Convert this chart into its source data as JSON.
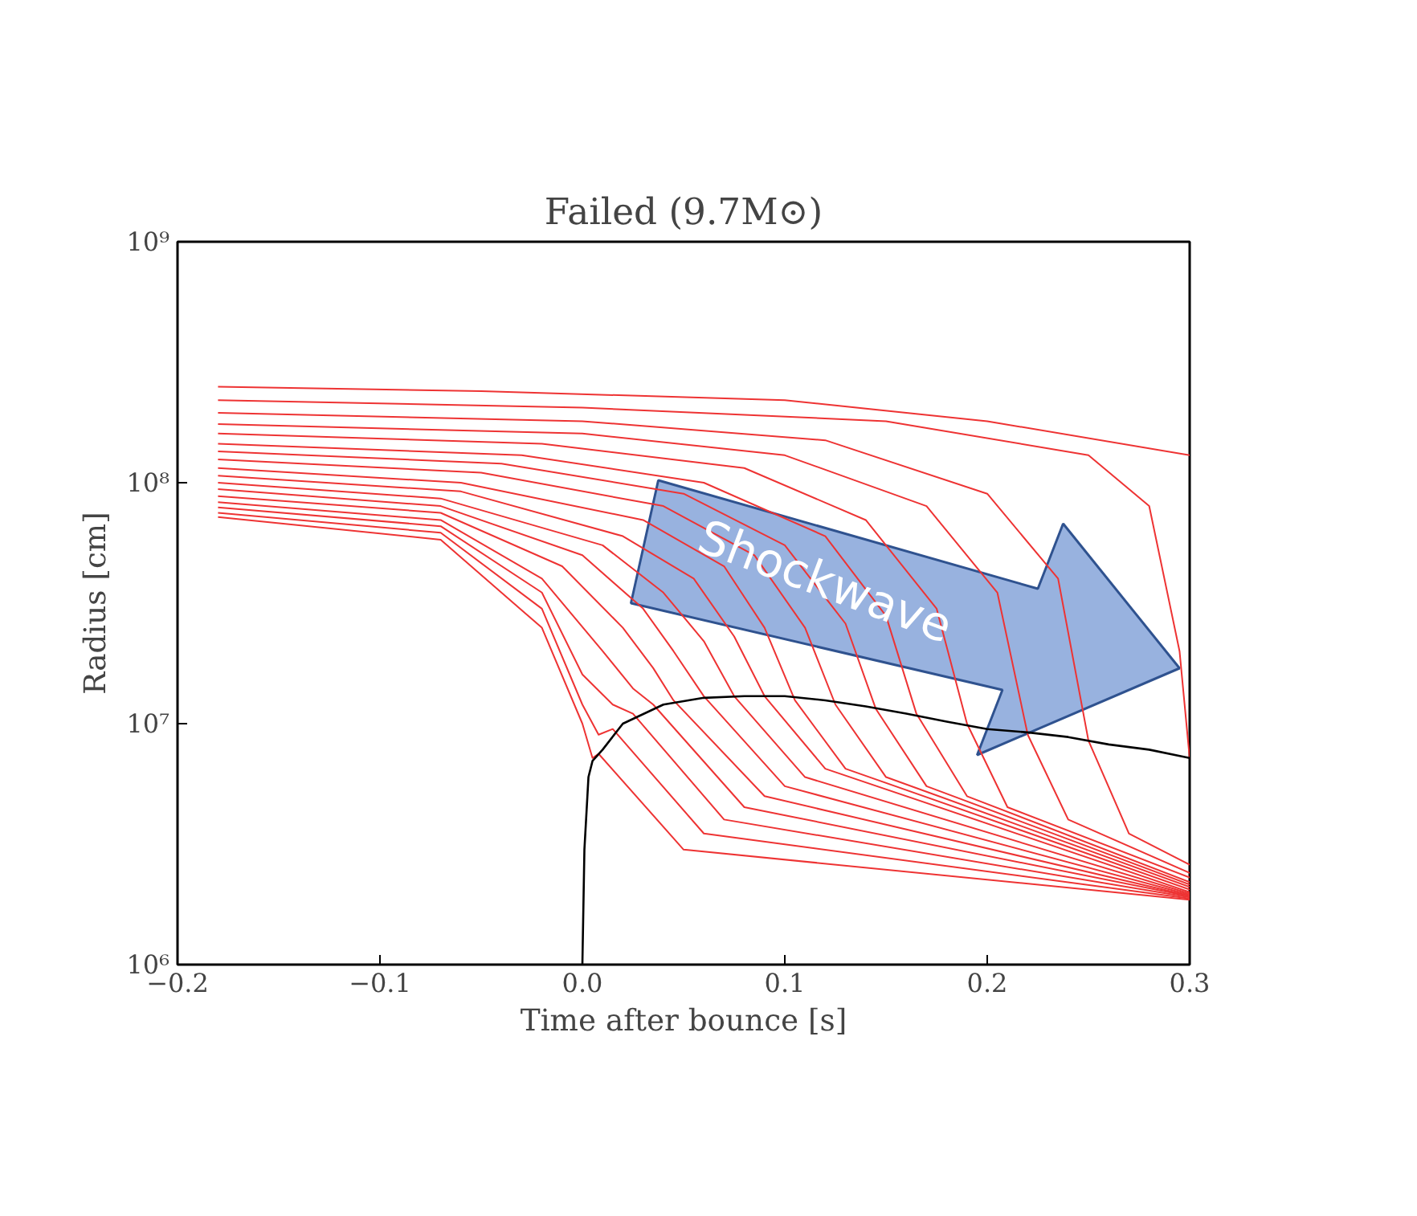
{
  "chart_data": {
    "type": "line",
    "title": "Failed (9.7M⊙)",
    "xlabel": "Time after bounce [s]",
    "ylabel": "Radius [cm]",
    "log": "y",
    "grid": false,
    "marker": "none",
    "line_style": "solid",
    "xlim": [
      -0.2,
      0.3
    ],
    "ylim": [
      1000000,
      1000000000
    ],
    "xticks": [
      {
        "value": -0.2,
        "label": "−0.2"
      },
      {
        "value": -0.1,
        "label": "−0.1"
      },
      {
        "value": 0.0,
        "label": "0.0"
      },
      {
        "value": 0.1,
        "label": "0.1"
      },
      {
        "value": 0.2,
        "label": "0.2"
      },
      {
        "value": 0.3,
        "label": "0.3"
      }
    ],
    "yticks": [
      {
        "value": 1000000,
        "label": "10⁶"
      },
      {
        "value": 10000000,
        "label": "10⁷"
      },
      {
        "value": 100000000,
        "label": "10⁸"
      },
      {
        "value": 1000000000,
        "label": "10⁹"
      }
    ],
    "annotations": [
      "Shockwave"
    ],
    "series": [
      {
        "color": "#ee3333",
        "x": [
          -0.18,
          -0.05,
          0.1,
          0.2,
          0.3
        ],
        "values": [
          250000000.0,
          240000000.0,
          220000000.0,
          180000000.0,
          130000000.0
        ]
      },
      {
        "color": "#ee3333",
        "x": [
          -0.18,
          0,
          0.15,
          0.25,
          0.28,
          0.295,
          0.3
        ],
        "values": [
          220000000.0,
          205000000.0,
          180000000.0,
          130000000.0,
          80000000.0,
          20000000.0,
          7200000.0
        ]
      },
      {
        "color": "#ee3333",
        "x": [
          -0.18,
          0,
          0.12,
          0.2,
          0.235,
          0.25,
          0.27,
          0.3
        ],
        "values": [
          195000000.0,
          180000000.0,
          150000000.0,
          90000000.0,
          40000000.0,
          8500000.0,
          3500000.0,
          2600000.0
        ]
      },
      {
        "color": "#ee3333",
        "x": [
          -0.18,
          0,
          0.1,
          0.17,
          0.205,
          0.22,
          0.24,
          0.3
        ],
        "values": [
          175000000.0,
          160000000.0,
          130000000.0,
          80000000.0,
          35000000.0,
          9000000.0,
          4000000.0,
          2400000.0
        ]
      },
      {
        "color": "#ee3333",
        "x": [
          -0.18,
          -0.02,
          0.08,
          0.14,
          0.175,
          0.19,
          0.21,
          0.3
        ],
        "values": [
          160000000.0,
          145000000.0,
          115000000.0,
          70000000.0,
          30000000.0,
          10000000.0,
          4500000.0,
          2300000.0
        ]
      },
      {
        "color": "#ee3333",
        "x": [
          -0.18,
          -0.03,
          0.06,
          0.12,
          0.15,
          0.165,
          0.19,
          0.3
        ],
        "values": [
          145000000.0,
          130000000.0,
          100000000.0,
          60000000.0,
          28000000.0,
          11000000.0,
          5000000.0,
          2200000.0
        ]
      },
      {
        "color": "#ee3333",
        "x": [
          -0.18,
          -0.04,
          0.05,
          0.1,
          0.13,
          0.145,
          0.17,
          0.3
        ],
        "values": [
          135000000.0,
          120000000.0,
          90000000.0,
          55000000.0,
          26000000.0,
          11500000.0,
          5500000.0,
          2150000.0
        ]
      },
      {
        "color": "#ee3333",
        "x": [
          -0.18,
          -0.05,
          0.04,
          0.085,
          0.11,
          0.125,
          0.15,
          0.3
        ],
        "values": [
          125000000.0,
          110000000.0,
          80000000.0,
          50000000.0,
          25000000.0,
          12000000.0,
          6000000.0,
          2100000.0
        ]
      },
      {
        "color": "#ee3333",
        "x": [
          -0.18,
          -0.06,
          0.03,
          0.07,
          0.09,
          0.105,
          0.13,
          0.3
        ],
        "values": [
          115000000.0,
          100000000.0,
          70000000.0,
          45000000.0,
          25000000.0,
          12500000.0,
          6500000.0,
          2050000.0
        ]
      },
      {
        "color": "#ee3333",
        "x": [
          -0.18,
          -0.06,
          0.02,
          0.055,
          0.075,
          0.09,
          0.12,
          0.3
        ],
        "values": [
          107000000.0,
          92000000.0,
          60000000.0,
          40000000.0,
          23000000.0,
          13000000.0,
          6500000.0,
          2000000.0
        ]
      },
      {
        "color": "#ee3333",
        "x": [
          -0.18,
          -0.07,
          0.01,
          0.04,
          0.06,
          0.075,
          0.11,
          0.3
        ],
        "values": [
          100000000.0,
          86000000.0,
          55000000.0,
          35000000.0,
          22000000.0,
          13000000.0,
          6000000.0,
          1970000.0
        ]
      },
      {
        "color": "#ee3333",
        "x": [
          -0.18,
          -0.07,
          0,
          0.03,
          0.045,
          0.06,
          0.1,
          0.3
        ],
        "values": [
          94000000.0,
          80000000.0,
          50000000.0,
          30000000.0,
          20000000.0,
          13000000.0,
          5500000.0,
          1950000.0
        ]
      },
      {
        "color": "#ee3333",
        "x": [
          -0.18,
          -0.07,
          -0.01,
          0.02,
          0.035,
          0.045,
          0.09,
          0.3
        ],
        "values": [
          88000000.0,
          75000000.0,
          45000000.0,
          25000000.0,
          17000000.0,
          12500000.0,
          5000000.0,
          1930000.0
        ]
      },
      {
        "color": "#ee3333",
        "x": [
          -0.18,
          -0.07,
          -0.02,
          0.01,
          0.025,
          0.035,
          0.08,
          0.3
        ],
        "values": [
          83000000.0,
          70000000.0,
          40000000.0,
          20000000.0,
          14000000.0,
          12000000.0,
          4500000.0,
          1920000.0
        ]
      },
      {
        "color": "#ee3333",
        "x": [
          -0.18,
          -0.07,
          -0.02,
          0,
          0.015,
          0.025,
          0.07,
          0.3
        ],
        "values": [
          79000000.0,
          66000000.0,
          35000000.0,
          16000000.0,
          12000000.0,
          11000000.0,
          4000000.0,
          1900000.0
        ]
      },
      {
        "color": "#ee3333",
        "x": [
          -0.18,
          -0.07,
          -0.02,
          0,
          0.008,
          0.015,
          0.06,
          0.3
        ],
        "values": [
          75000000.0,
          62000000.0,
          30000000.0,
          12000000.0,
          9000000.0,
          9500000.0,
          3500000.0,
          1880000.0
        ]
      },
      {
        "color": "#ee3333",
        "x": [
          -0.18,
          -0.07,
          -0.02,
          0,
          0.005,
          0.008,
          0.05,
          0.3
        ],
        "values": [
          72000000.0,
          58000000.0,
          25000000.0,
          10000000.0,
          7200000.0,
          7500000.0,
          3000000.0,
          1860000.0
        ]
      },
      {
        "color": "#000000",
        "x": [
          0,
          0.001,
          0.003,
          0.005,
          0.01,
          0.02,
          0.04,
          0.06,
          0.08,
          0.1,
          0.12,
          0.14,
          0.16,
          0.18,
          0.2,
          0.22,
          0.24,
          0.26,
          0.28,
          0.3
        ],
        "values": [
          1000000.0,
          3000000.0,
          6000000.0,
          7000000.0,
          7800000.0,
          10000000.0,
          12000000.0,
          12800000.0,
          13000000.0,
          13000000.0,
          12500000.0,
          11800000.0,
          11000000.0,
          10200000.0,
          9500000.0,
          9200000.0,
          8800000.0,
          8200000.0,
          7800000.0,
          7200000.0
        ]
      }
    ]
  }
}
